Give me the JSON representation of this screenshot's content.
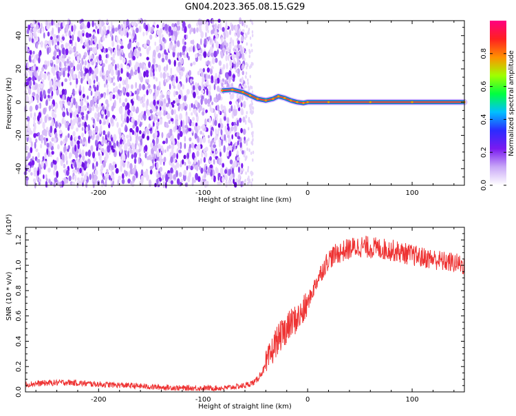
{
  "title": "GN04.2023.365.08.15.G29",
  "chart_data": [
    {
      "type": "heatmap",
      "title": "GN04.2023.365.08.15.G29",
      "xlabel": "Height of straight line (km)",
      "ylabel": "Frequency (Hz)",
      "xlim": [
        -270,
        150
      ],
      "ylim": [
        -50,
        49
      ],
      "x_ticks": [
        -200,
        -100,
        0,
        100
      ],
      "y_ticks": [
        -40,
        -20,
        0,
        20,
        40
      ],
      "noise_region_x": [
        -270,
        -60
      ],
      "signal_trace": {
        "x": [
          -82,
          -72,
          -62,
          -55,
          -48,
          -40,
          -33,
          -28,
          -22,
          -16,
          -10,
          -4,
          0,
          20,
          60,
          100,
          150
        ],
        "frequency": [
          7,
          7.5,
          6,
          4,
          2,
          1,
          2,
          3.5,
          2.5,
          1,
          0,
          -0.5,
          0,
          0,
          0,
          0,
          0
        ]
      },
      "colorbar": {
        "label": "Normalized spectral amplitude",
        "range": [
          0,
          1
        ],
        "ticks": [
          0.0,
          0.2,
          0.4,
          0.6,
          0.8
        ],
        "colors": [
          "#ffffff",
          "#c9a8f7",
          "#7a1af0",
          "#2b2bff",
          "#00c0ff",
          "#00ff40",
          "#a0ff00",
          "#ff9000",
          "#ff2020",
          "#ff0080"
        ]
      }
    },
    {
      "type": "line",
      "xlabel": "Height of straight line (km)",
      "ylabel": "SNR (10 * v/v)",
      "y_multiplier": "(x10⁴)",
      "xlim": [
        -270,
        150
      ],
      "ylim": [
        0,
        1.3
      ],
      "x_ticks": [
        -200,
        -100,
        0,
        100
      ],
      "y_ticks": [
        0.0,
        0.2,
        0.4,
        0.6,
        0.8,
        1.0,
        1.2
      ],
      "series": [
        {
          "color": "#ee3333",
          "x": [
            -270,
            -250,
            -230,
            -200,
            -170,
            -150,
            -120,
            -100,
            -80,
            -70,
            -60,
            -50,
            -40,
            -35,
            -30,
            -25,
            -20,
            -15,
            -10,
            -5,
            0,
            10,
            20,
            30,
            40,
            50,
            60,
            70,
            80,
            90,
            100,
            110,
            120,
            130,
            140,
            150
          ],
          "y": [
            0.06,
            0.07,
            0.075,
            0.06,
            0.05,
            0.04,
            0.03,
            0.03,
            0.03,
            0.04,
            0.05,
            0.08,
            0.2,
            0.3,
            0.4,
            0.45,
            0.5,
            0.55,
            0.58,
            0.62,
            0.7,
            0.9,
            1.05,
            1.1,
            1.13,
            1.15,
            1.14,
            1.13,
            1.12,
            1.1,
            1.08,
            1.06,
            1.05,
            1.03,
            1.02,
            1.0
          ]
        }
      ]
    }
  ]
}
